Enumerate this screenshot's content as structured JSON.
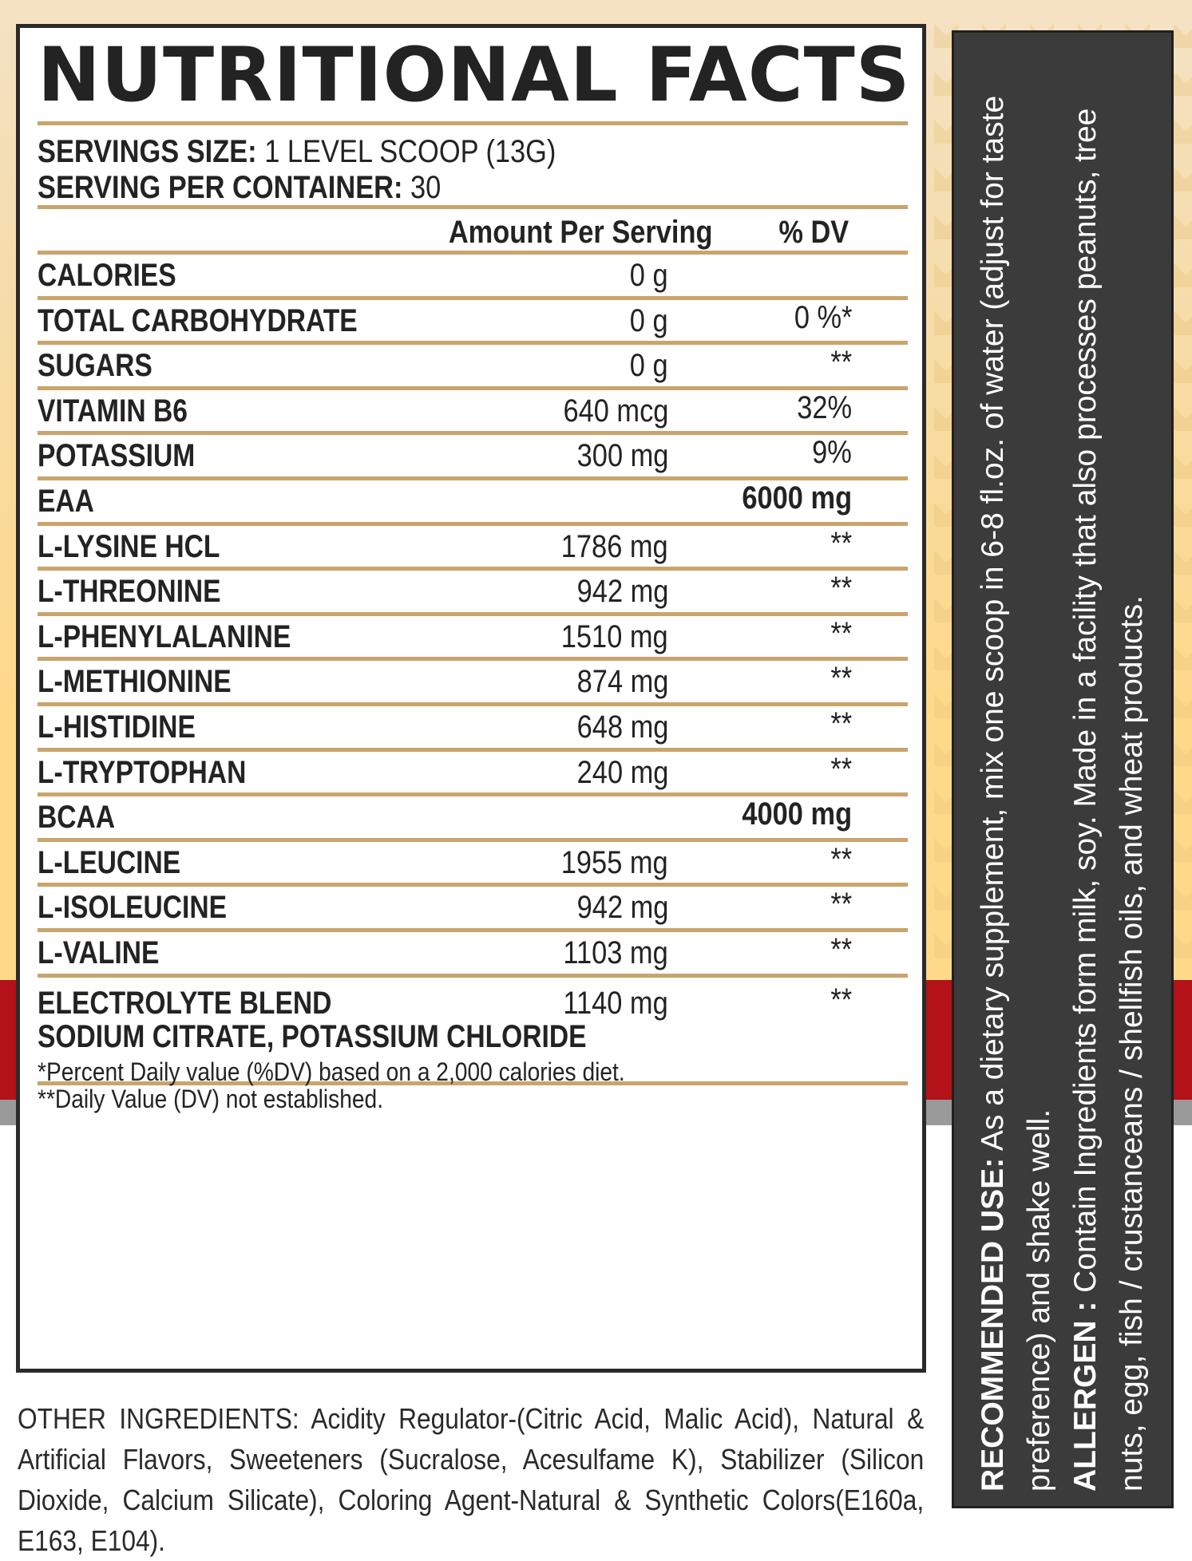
{
  "title": "NUTRITIONAL FACTS",
  "serving": {
    "size_label": "SERVINGS SIZE:",
    "size_value": "1 LEVEL SCOOP (13G)",
    "container_label": "SERVING PER CONTAINER:",
    "container_value": "30"
  },
  "header": {
    "amount": "Amount Per Serving",
    "dv": "% DV"
  },
  "rows": [
    {
      "name": "CALORIES",
      "amount": "0 g",
      "dv": ""
    },
    {
      "name": "TOTAL CARBOHYDRATE",
      "amount": "0 g",
      "dv": "0 %*"
    },
    {
      "name": "SUGARS",
      "amount": "0 g",
      "dv": "**"
    },
    {
      "name": "VITAMIN B6",
      "amount": "640  mcg",
      "dv": "32%"
    },
    {
      "name": "POTASSIUM",
      "amount": "300 mg",
      "dv": "9%"
    },
    {
      "name": "EAA",
      "amount": "",
      "dv": "6000 mg"
    },
    {
      "name": "L-LYSINE HCL",
      "amount": "1786 mg",
      "dv": "**"
    },
    {
      "name": "L-THREONINE",
      "amount": "942 mg",
      "dv": "**"
    },
    {
      "name": "L-PHENYLALANINE",
      "amount": "1510 mg",
      "dv": "**"
    },
    {
      "name": "L-METHIONINE",
      "amount": "874 mg",
      "dv": "**"
    },
    {
      "name": "L-HISTIDINE",
      "amount": "648 mg",
      "dv": "**"
    },
    {
      "name": "L-TRYPTOPHAN",
      "amount": "240 mg",
      "dv": "**"
    },
    {
      "name": "BCAA",
      "amount": "",
      "dv": "4000 mg"
    },
    {
      "name": "L-LEUCINE",
      "amount": "1955 mg",
      "dv": "**"
    },
    {
      "name": "L-ISOLEUCINE",
      "amount": "942 mg",
      "dv": "**"
    },
    {
      "name": "L-VALINE",
      "amount": "1103 mg",
      "dv": "**"
    },
    {
      "name": "ELECTROLYTE BLEND",
      "sub": "SODIUM CITRATE, POTASSIUM CHLORIDE",
      "amount": "1140 mg",
      "dv": "**"
    }
  ],
  "footnotes": [
    "*Percent Daily value (%DV) based on a 2,000 calories diet.",
    "**Daily Value (DV) not established."
  ],
  "other_ingredients": "OTHER INGREDIENTS: Acidity Regulator-(Citric Acid, Malic Acid), Natural & Artificial Flavors, Sweeteners (Sucralose, Acesulfame K), Stabilizer (Silicon Dioxide, Calcium Silicate), Coloring Agent-Natural & Synthetic Colors(E160a, E163, E104).",
  "side": {
    "recommended_label": "RECOMMENDED USE:",
    "recommended_text": "As a dietary supplement, mix one scoop in 6-8 fl.oz. of water (adjust for taste preference) and shake well.",
    "allergen_label": "ALLERGEN :",
    "allergen_text": "Contain Ingredients form milk, soy. Made in a facility that also processes peanuts, tree nuts, egg, fish / crustanceans / shellfish oils, and wheat products."
  },
  "colors": {
    "panel_border": "#2a2a2a",
    "rule": "#c9a46c",
    "side_bg": "#3b3b3b",
    "band_red": "#b21218"
  }
}
